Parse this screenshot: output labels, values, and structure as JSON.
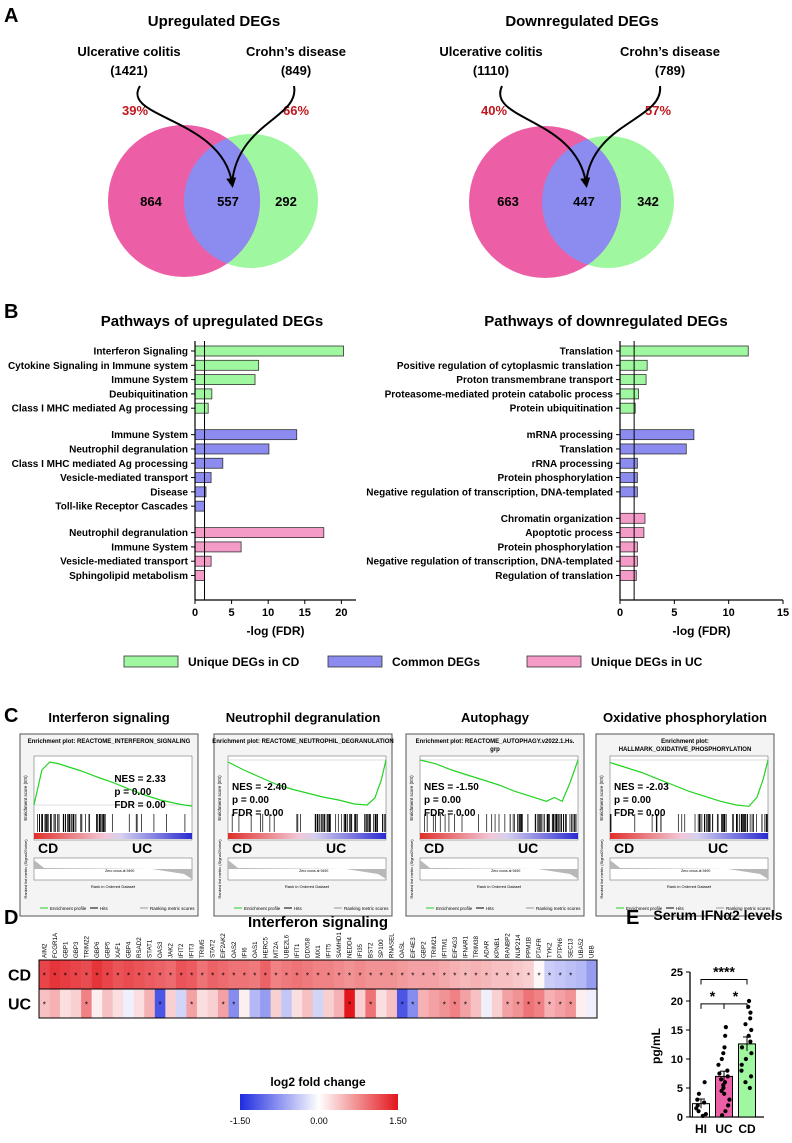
{
  "panelA": {
    "letter": "A",
    "up": {
      "title": "Upregulated DEGs",
      "left_name": "Ulcerative colitis",
      "left_count": "(1421)",
      "right_name": "Crohn’s disease",
      "right_count": "(849)",
      "left_pct": "39%",
      "right_pct": "66%",
      "left_only": "864",
      "overlap": "557",
      "right_only": "292"
    },
    "down": {
      "title": "Downregulated DEGs",
      "left_name": "Ulcerative colitis",
      "left_count": "(1110)",
      "right_name": "Crohn’s disease",
      "right_count": "(789)",
      "left_pct": "40%",
      "right_pct": "57%",
      "left_only": "663",
      "overlap": "447",
      "right_only": "342"
    },
    "colors": {
      "uc": "#ec5fa6",
      "cd": "#9ff79f",
      "common": "#8c8cf0",
      "pct": "#c0161c"
    }
  },
  "panelB": {
    "letter": "B",
    "legend": {
      "cd": "Unique DEGs in CD",
      "common": "Common DEGs",
      "uc": "Unique DEGs in UC"
    }
  },
  "chart_data": [
    {
      "type": "bar",
      "orientation": "horizontal",
      "title": "Pathways of upregulated DEGs",
      "xlabel": "-log (FDR)",
      "xlim": [
        0,
        22
      ],
      "xticks": [
        "0",
        "5",
        "10",
        "15",
        "20"
      ],
      "groups": [
        {
          "name": "Unique DEGs in CD",
          "color": "#9ff79f",
          "categories": [
            "Interferon Signaling",
            "Cytokine Signaling in Immune system",
            "Immune System",
            "Deubiquitination",
            "Class I MHC mediated Ag processing"
          ],
          "values": [
            20.3,
            8.7,
            8.2,
            2.3,
            1.8
          ]
        },
        {
          "name": "Common DEGs",
          "color": "#8c8cf0",
          "categories": [
            "Immune System",
            "Neutrophil degranulation",
            "Class I MHC mediated Ag processing",
            "Vesicle-mediated transport",
            "Disease",
            "Toll-like Receptor Cascades"
          ],
          "values": [
            13.9,
            10.1,
            3.8,
            2.2,
            1.5,
            1.3
          ]
        },
        {
          "name": "Unique DEGs in UC",
          "color": "#f59bc8",
          "categories": [
            "Neutrophil degranulation",
            "Immune System",
            "Vesicle-mediated transport",
            "Sphingolipid metabolism"
          ],
          "values": [
            17.6,
            6.3,
            2.2,
            1.3
          ]
        }
      ]
    },
    {
      "type": "bar",
      "orientation": "horizontal",
      "title": "Pathways of downregulated DEGs",
      "xlabel": "-log (FDR)",
      "xlim": [
        0,
        15
      ],
      "xticks": [
        "0",
        "5",
        "10",
        "15"
      ],
      "groups": [
        {
          "name": "Unique DEGs in CD",
          "color": "#9ff79f",
          "categories": [
            "Translation",
            "Positive regulation of cytoplasmic translation",
            "Proton transmembrane transport",
            "Proteasome-mediated protein catabolic process",
            "Protein ubiquitination"
          ],
          "values": [
            11.8,
            2.5,
            2.4,
            1.7,
            1.4
          ]
        },
        {
          "name": "Common DEGs",
          "color": "#8c8cf0",
          "categories": [
            "mRNA processing",
            "Translation",
            "rRNA processing",
            "Protein phosphorylation",
            "Negative regulation of transcription, DNA-templated"
          ],
          "values": [
            6.8,
            6.1,
            1.6,
            1.6,
            1.6
          ]
        },
        {
          "name": "Unique DEGs in UC",
          "color": "#f59bc8",
          "categories": [
            "Chromatin organization",
            "Apoptotic process",
            "Protein phosphorylation",
            "Negative regulation of transcription, DNA-templated",
            "Regulation of translation"
          ],
          "values": [
            2.3,
            2.2,
            1.6,
            1.6,
            1.5
          ]
        }
      ]
    },
    {
      "type": "line",
      "title": "Interferon signaling",
      "plot_title": "Enrichment plot: REACTOME_INTERFERON_SIGNALING",
      "nes": "NES = 2.33",
      "p": "p = 0.00",
      "fdr": "FDR = 0.00",
      "left_label": "CD",
      "right_label": "UC",
      "ylabel": "Enrichment score (ES)",
      "ylim": [
        -0.1,
        0.9
      ],
      "x": [
        0,
        0.05,
        0.1,
        0.15,
        0.2,
        0.3,
        0.4,
        0.5,
        0.6,
        0.7,
        0.8,
        0.9,
        0.95,
        1.0
      ],
      "y": [
        0,
        0.7,
        0.86,
        0.83,
        0.78,
        0.68,
        0.56,
        0.45,
        0.32,
        0.2,
        0.1,
        0.03,
        0.0,
        -0.02
      ]
    },
    {
      "type": "line",
      "title": "Neutrophil degranulation",
      "plot_title": "Enrichment plot: REACTOME_NEUTROPHIL_DEGRANULATION",
      "nes": "NES = -2.40",
      "p": "p = 0.00",
      "fdr": "FDR = 0.00",
      "left_label": "CD",
      "right_label": "UC",
      "ylabel": "Enrichment score (ES)",
      "ylim": [
        -0.5,
        0.0
      ],
      "x": [
        0,
        0.1,
        0.2,
        0.3,
        0.4,
        0.5,
        0.6,
        0.7,
        0.8,
        0.88,
        0.93,
        0.97,
        1.0
      ],
      "y": [
        -0.02,
        -0.1,
        -0.17,
        -0.24,
        -0.29,
        -0.33,
        -0.37,
        -0.4,
        -0.44,
        -0.45,
        -0.38,
        -0.2,
        0.0
      ]
    },
    {
      "type": "line",
      "title": "Autophagy",
      "plot_title": "Enrichment plot: REACTOME_AUTOPHAGY.v2022.1.Hs.",
      "plot_title2": "grp",
      "nes": "NES = -1.50",
      "p": "p = 0.00",
      "fdr": "FDR = 0.00",
      "left_label": "CD",
      "right_label": "UC",
      "ylabel": "Enrichment score (ES)",
      "ylim": [
        -0.4,
        0.0
      ],
      "x": [
        0,
        0.1,
        0.2,
        0.3,
        0.4,
        0.5,
        0.6,
        0.7,
        0.8,
        0.85,
        0.9,
        0.95,
        1.0
      ],
      "y": [
        0.0,
        -0.03,
        -0.08,
        -0.12,
        -0.16,
        -0.2,
        -0.25,
        -0.29,
        -0.33,
        -0.3,
        -0.33,
        -0.18,
        0.0
      ]
    },
    {
      "type": "line",
      "title": "Oxidative phosphorylation",
      "plot_title": "Enrichment plot:",
      "plot_title2": "HALLMARK_OXIDATIVE_PHOSPHORYLATION",
      "nes": "NES = -2.03",
      "p": "p = 0.00",
      "fdr": "FDR = 0.00",
      "left_label": "CD",
      "right_label": "UC",
      "ylabel": "Enrichment score (ES)",
      "ylim": [
        -0.4,
        0.0
      ],
      "x": [
        0,
        0.1,
        0.2,
        0.3,
        0.4,
        0.5,
        0.6,
        0.7,
        0.8,
        0.88,
        0.93,
        0.97,
        1.0
      ],
      "y": [
        -0.02,
        -0.06,
        -0.1,
        -0.15,
        -0.2,
        -0.25,
        -0.29,
        -0.33,
        -0.36,
        -0.37,
        -0.3,
        -0.15,
        0.0
      ]
    },
    {
      "type": "heatmap",
      "title": "Interferon signaling",
      "rows": [
        "CD",
        "UC"
      ],
      "genes": [
        "AIM2",
        "FCGR1A",
        "GBP1",
        "GBP3",
        "TRIM22",
        "GBP6",
        "GBP5",
        "XAF1",
        "GBP4",
        "RSAD2",
        "STAT1",
        "OAS3",
        "JAK2",
        "IFIT2",
        "IFIT3",
        "TRIM5",
        "STAT2",
        "EIF2AK2",
        "OAS2",
        "IFI6",
        "OAS1",
        "HERC5",
        "MT2A",
        "UBE2L6",
        "IFIT1",
        "DDX58",
        "MX1",
        "IFIT5",
        "SAMHD1",
        "NEDD4",
        "IFI35",
        "BST2",
        "SP100",
        "RNASEL",
        "OASL",
        "EIF4E3",
        "GBP2",
        "TRIM21",
        "IFITM1",
        "EIF4G3",
        "IFNAR1",
        "TRIM38",
        "ADAR",
        "KPNB1",
        "RANBP2",
        "NUP214",
        "PPM1B",
        "PTAFR",
        "TYK2",
        "PTPN6",
        "SEC13",
        "UBA52",
        "UBB"
      ],
      "values": [
        [
          1.2,
          1.3,
          1.25,
          1.2,
          1.15,
          1.3,
          1.2,
          1.1,
          1.15,
          1.1,
          1.05,
          1.0,
          0.95,
          1.1,
          1.05,
          0.9,
          1.0,
          0.95,
          0.9,
          0.9,
          0.85,
          1.0,
          0.8,
          0.85,
          0.9,
          0.85,
          0.8,
          0.8,
          0.75,
          0.7,
          0.75,
          0.7,
          0.7,
          0.7,
          0.65,
          0.6,
          0.6,
          0.6,
          0.55,
          0.5,
          0.45,
          0.5,
          0.45,
          0.4,
          0.4,
          0.35,
          0.3,
          0.05,
          -0.35,
          -0.4,
          -0.45,
          -0.5,
          -0.7
        ],
        [
          0.4,
          0.5,
          0.2,
          0.3,
          0.8,
          0.1,
          0.4,
          0.2,
          -0.1,
          0.2,
          0.5,
          -1.2,
          0.3,
          -0.3,
          0.6,
          0.2,
          0.3,
          0.6,
          -0.8,
          0.1,
          -0.5,
          -0.7,
          0.3,
          -0.4,
          0.2,
          0.4,
          -0.3,
          0.3,
          0.5,
          1.5,
          0.3,
          0.9,
          0.2,
          0.4,
          -1.2,
          -0.8,
          0.5,
          0.6,
          0.7,
          0.8,
          0.6,
          0.4,
          -0.1,
          0.3,
          0.6,
          0.7,
          0.9,
          0.8,
          0.5,
          0.6,
          0.7,
          0.1,
          -0.1
        ]
      ],
      "stars": [
        [
          1,
          1,
          1,
          1,
          1,
          1,
          1,
          1,
          1,
          1,
          1,
          1,
          1,
          1,
          1,
          1,
          1,
          1,
          1,
          1,
          1,
          1,
          1,
          1,
          1,
          1,
          1,
          1,
          1,
          1,
          1,
          1,
          1,
          1,
          1,
          1,
          1,
          1,
          1,
          1,
          1,
          1,
          1,
          1,
          1,
          1,
          1,
          1,
          1,
          1,
          1,
          0,
          0
        ],
        [
          1,
          0,
          0,
          0,
          1,
          0,
          0,
          0,
          0,
          0,
          0,
          1,
          0,
          0,
          1,
          0,
          0,
          1,
          1,
          0,
          0,
          0,
          0,
          0,
          0,
          0,
          0,
          0,
          0,
          1,
          0,
          1,
          0,
          0,
          1,
          1,
          0,
          0,
          1,
          1,
          1,
          0,
          0,
          0,
          1,
          1,
          1,
          1,
          1,
          1,
          1,
          0,
          0
        ]
      ],
      "colorbar_title": "log2 fold change",
      "colorbar_ticks": [
        "-1.50",
        "0.00",
        "1.50"
      ],
      "vmin": -1.5,
      "vmax": 1.5
    },
    {
      "type": "bar",
      "title": "Serum IFNα2 levels",
      "ylabel": "pg/mL",
      "ylim": [
        0,
        25
      ],
      "yticks": [
        "0",
        "5",
        "10",
        "15",
        "20",
        "25"
      ],
      "categories": [
        "HI",
        "UC",
        "CD"
      ],
      "values": [
        2.3,
        7.0,
        12.6
      ],
      "errors": [
        0.8,
        0.9,
        1.2
      ],
      "colors": [
        "#ffffff",
        "#ec5fa6",
        "#9ff79f"
      ],
      "points": [
        [
          0.2,
          0.5,
          1.0,
          1.5,
          2.0,
          2.5,
          3.0,
          4.0,
          6.0
        ],
        [
          0.3,
          1.0,
          2.0,
          3.0,
          4.0,
          4.5,
          5.0,
          5.5,
          6.0,
          6.5,
          7.0,
          7.5,
          8.0,
          9.0,
          10.0,
          11.0,
          12.0,
          14.0,
          15.5
        ],
        [
          5.0,
          6.0,
          7.0,
          8.0,
          9.0,
          10.0,
          11.0,
          12.0,
          13.0,
          14.0,
          15.0,
          16.0,
          17.0,
          18.0,
          19.0,
          20.0
        ]
      ],
      "significance": [
        {
          "between": [
            "HI",
            "UC"
          ],
          "label": "*"
        },
        {
          "between": [
            "UC",
            "CD"
          ],
          "label": "*"
        },
        {
          "between": [
            "HI",
            "CD"
          ],
          "label": "****"
        }
      ]
    }
  ],
  "panelC": {
    "letter": "C",
    "legend_items": [
      "Enrichment profile",
      "Hits",
      "Ranking metric scores"
    ],
    "rank_label": "Rank in Ordered Dataset",
    "metric_label": "Ranked list metric (Signal2Noise)",
    "zero_cross": "Zero cross at 9490"
  },
  "panelD": {
    "letter": "D"
  },
  "panelE": {
    "letter": "E"
  }
}
